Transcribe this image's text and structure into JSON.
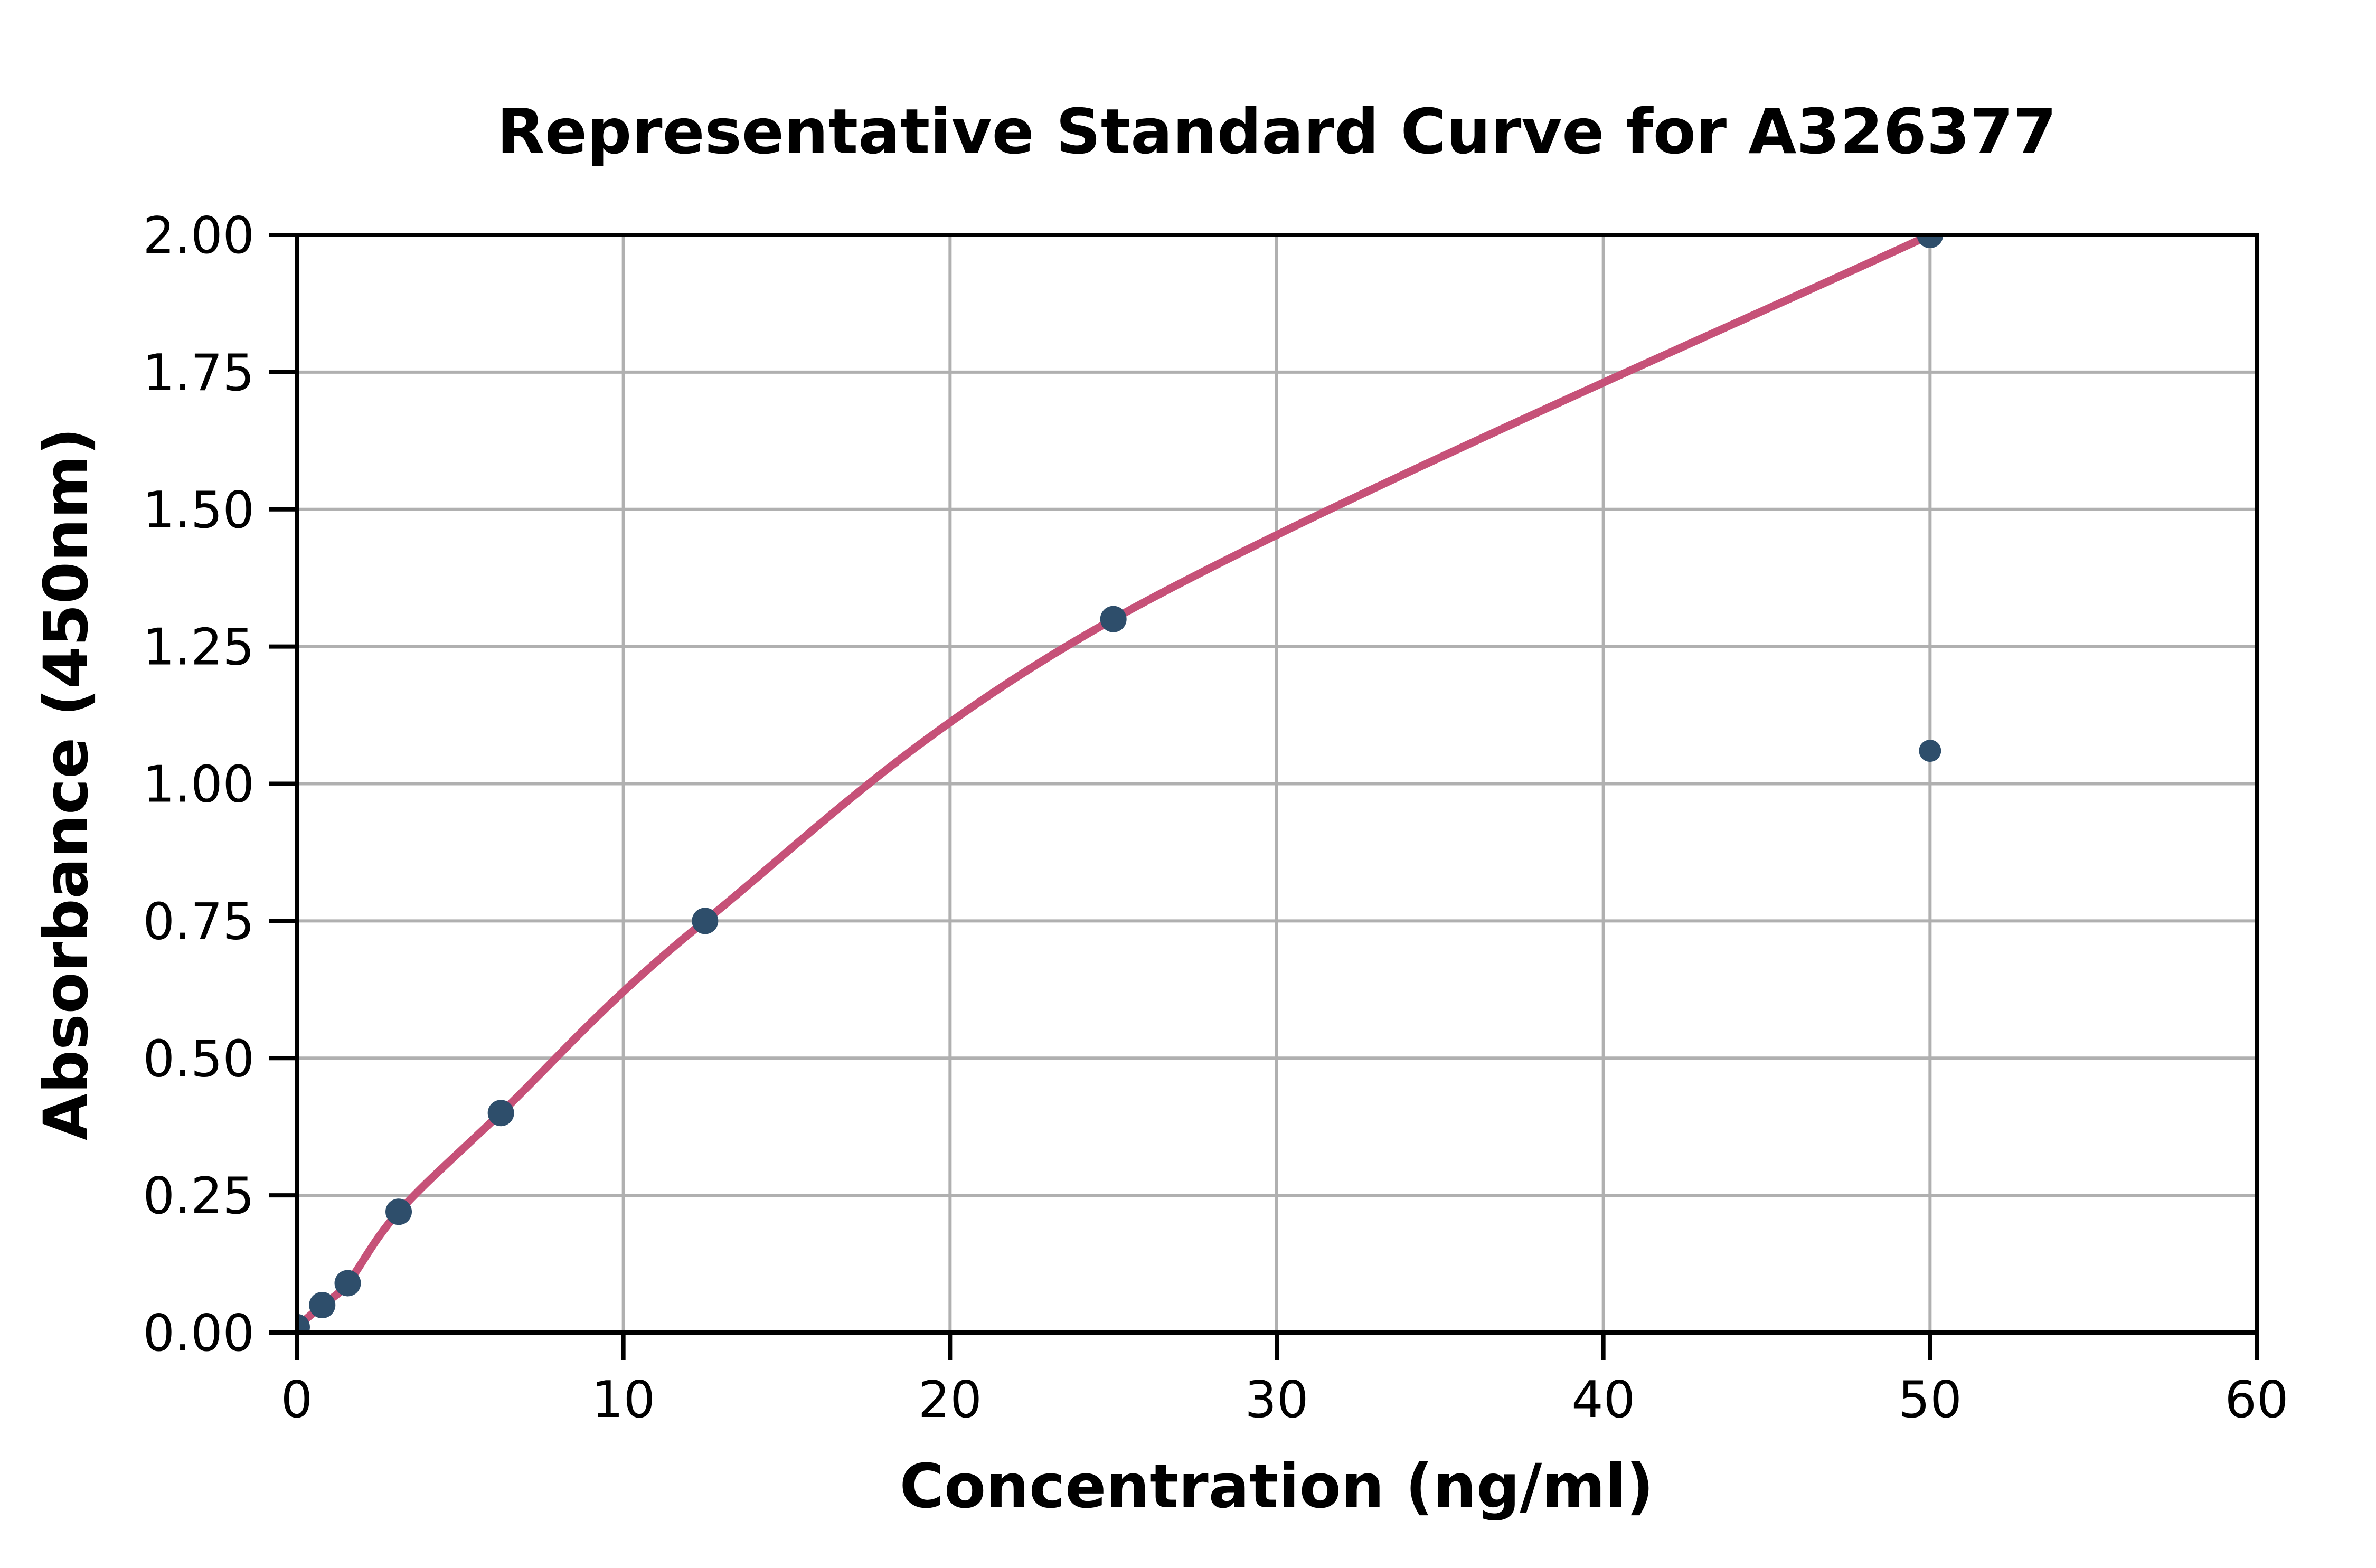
{
  "figure": {
    "background": "#FFFFFF"
  },
  "chart_data": {
    "type": "scatter",
    "title": "Representative Standard Curve for A326377",
    "xlabel": "Concentration (ng/ml)",
    "ylabel": "Absorbance (450nm)",
    "xlim": [
      0,
      60
    ],
    "ylim": [
      0,
      2.0
    ],
    "grid": true,
    "legend": "none",
    "x_ticks": [
      0,
      10,
      20,
      30,
      40,
      50,
      60
    ],
    "x_tick_labels": [
      "0",
      "10",
      "20",
      "30",
      "40",
      "50",
      "60"
    ],
    "y_ticks": [
      0,
      0.25,
      0.5,
      0.75,
      1.0,
      1.25,
      1.5,
      1.75,
      2.0
    ],
    "y_tick_labels": [
      "0.00",
      "0.25",
      "0.50",
      "0.75",
      "1.00",
      "1.25",
      "1.50",
      "1.75",
      "2.00"
    ],
    "series": [
      {
        "name": "standard-points",
        "type": "scatter",
        "x": [
          0,
          0.78,
          1.56,
          3.12,
          6.25,
          12.5,
          25,
          50
        ],
        "y": [
          0.01,
          0.05,
          0.09,
          0.22,
          0.4,
          0.75,
          1.3,
          2.0
        ],
        "marker_color": "#2E4E6B",
        "marker_radius": 25
      },
      {
        "name": "stray-point",
        "type": "scatter",
        "x": [
          50
        ],
        "y": [
          1.06
        ],
        "marker_color": "#2E4E6B",
        "marker_radius": 21
      },
      {
        "name": "fit-curve",
        "type": "line",
        "x": [
          0,
          0.78,
          1.56,
          3.12,
          6.25,
          12.5,
          25,
          50
        ],
        "y": [
          0.01,
          0.05,
          0.09,
          0.22,
          0.4,
          0.75,
          1.3,
          2.0
        ],
        "line_color": "#C65178",
        "line_width": 15
      }
    ],
    "colors": {
      "grid": "#B0B0B0",
      "frame": "#000000",
      "text": "#000000",
      "background": "#FFFFFF"
    }
  }
}
